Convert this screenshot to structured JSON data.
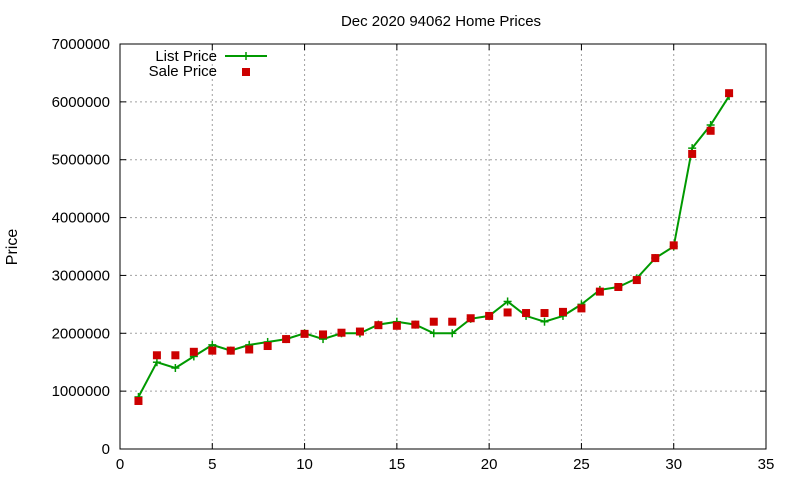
{
  "chart_data": {
    "type": "line",
    "title": "Dec 2020 94062 Home Prices",
    "xlabel": "",
    "ylabel": "Price",
    "xlim": [
      0,
      35
    ],
    "ylim": [
      0,
      7000000
    ],
    "x_ticks": [
      0,
      5,
      10,
      15,
      20,
      25,
      30,
      35
    ],
    "y_ticks": [
      0,
      1000000,
      2000000,
      3000000,
      4000000,
      5000000,
      6000000,
      7000000
    ],
    "grid": true,
    "legend_position": "top-left",
    "series": [
      {
        "name": "List Price",
        "style": "line-with-plus-markers",
        "color": "#009900",
        "x": [
          1,
          2,
          3,
          4,
          5,
          6,
          7,
          8,
          9,
          10,
          11,
          12,
          13,
          14,
          15,
          16,
          17,
          18,
          19,
          20,
          21,
          22,
          23,
          24,
          25,
          26,
          27,
          28,
          29,
          30,
          31,
          32,
          33
        ],
        "values": [
          900000,
          1500000,
          1400000,
          1600000,
          1800000,
          1700000,
          1800000,
          1850000,
          1900000,
          2000000,
          1900000,
          2000000,
          2000000,
          2150000,
          2200000,
          2150000,
          2000000,
          2000000,
          2250000,
          2300000,
          2550000,
          2300000,
          2200000,
          2300000,
          2500000,
          2750000,
          2800000,
          2950000,
          3300000,
          3500000,
          5200000,
          5600000,
          6100000
        ]
      },
      {
        "name": "Sale Price",
        "style": "square-markers",
        "color": "#cc0000",
        "x": [
          1,
          2,
          3,
          4,
          5,
          6,
          7,
          8,
          9,
          10,
          11,
          12,
          13,
          14,
          15,
          16,
          17,
          18,
          19,
          20,
          21,
          22,
          23,
          24,
          25,
          26,
          27,
          28,
          29,
          30,
          31,
          32,
          33
        ],
        "values": [
          830000,
          1620000,
          1620000,
          1680000,
          1700000,
          1700000,
          1720000,
          1780000,
          1900000,
          1990000,
          1980000,
          2010000,
          2030000,
          2140000,
          2130000,
          2150000,
          2200000,
          2200000,
          2260000,
          2300000,
          2360000,
          2350000,
          2350000,
          2370000,
          2430000,
          2720000,
          2800000,
          2920000,
          3300000,
          3520000,
          5100000,
          5500000,
          6150000
        ]
      }
    ]
  }
}
